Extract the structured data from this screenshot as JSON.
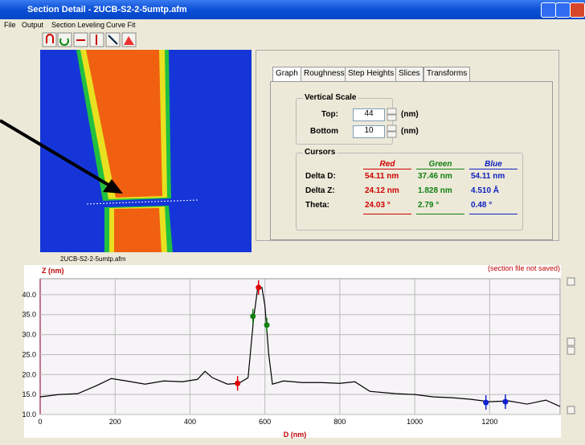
{
  "window": {
    "title": "Section Detail - 2UCB-S2-2-5umtp.afm"
  },
  "menu": [
    "File",
    "Output",
    "Section Leveling",
    "Curve Fit"
  ],
  "image_caption": "2UCB-S2-2-5umtp.afm",
  "tabs": [
    "Graph",
    "Roughness",
    "Step Heights",
    "Slices",
    "Transforms"
  ],
  "vertical_scale": {
    "title": "Vertical Scale",
    "top_label": "Top:",
    "top_value": "44",
    "bottom_label": "Bottom",
    "bottom_value": "10",
    "unit": "(nm)"
  },
  "cursors": {
    "title": "Cursors",
    "columns": [
      "Red",
      "Green",
      "Blue"
    ],
    "rows": [
      {
        "label": "Delta D:",
        "values": [
          "54.11 nm",
          "37.46 nm",
          "54.11 nm"
        ]
      },
      {
        "label": "Delta Z:",
        "values": [
          "24.12 nm",
          "1.828 nm",
          "4.510 Å"
        ]
      },
      {
        "label": "Theta:",
        "values": [
          "24.03 °",
          "2.79 °",
          "0.48 °"
        ]
      }
    ]
  },
  "status": "(section file not saved)",
  "chart_data": {
    "type": "line",
    "x_label": "D (nm)",
    "y_label": "Z (nm)",
    "x": [
      0,
      50,
      100,
      150,
      190,
      230,
      280,
      330,
      380,
      420,
      440,
      460,
      500,
      530,
      555,
      570,
      580,
      592,
      600,
      610,
      620,
      650,
      700,
      750,
      800,
      840,
      880,
      950,
      1000,
      1050,
      1100,
      1150,
      1200,
      1250,
      1300,
      1350,
      1388
    ],
    "series": [
      {
        "color": "#000000",
        "values": [
          14.4,
          15,
          15.2,
          17.2,
          19,
          18.4,
          17.6,
          18.4,
          18.2,
          18.8,
          20.8,
          19.2,
          17.6,
          17.8,
          19.2,
          34.2,
          41.2,
          41.8,
          37.2,
          25.2,
          17.6,
          18.4,
          18,
          18,
          17.8,
          18.2,
          15.8,
          15.2,
          15,
          14.4,
          14.2,
          13.8,
          13.2,
          13.4,
          12.6,
          13.6,
          12
        ]
      }
    ],
    "cursor_points": [
      {
        "color": "#e00000",
        "x": [
          527,
          583
        ],
        "values": [
          17.8,
          41.8
        ]
      },
      {
        "color": "#108010",
        "x": [
          568,
          605
        ],
        "values": [
          34.6,
          32.4
        ]
      },
      {
        "color": "#1020d0",
        "x": [
          1190,
          1242
        ],
        "values": [
          13,
          13.2
        ]
      }
    ],
    "xlim": [
      0,
      1388
    ],
    "ylim": [
      10,
      44
    ],
    "xticks": [
      0,
      200,
      400,
      600,
      800,
      1000,
      1200
    ],
    "yticks": [
      {
        "value": 10,
        "label": "10.0"
      },
      {
        "value": 15,
        "label": "15.0"
      },
      {
        "value": 20,
        "label": "20.0"
      },
      {
        "value": 25,
        "label": "25.0"
      },
      {
        "value": 30,
        "label": "30.0"
      },
      {
        "value": 35,
        "label": "35.0"
      },
      {
        "value": 40,
        "label": "40.0"
      }
    ],
    "grid": true
  }
}
